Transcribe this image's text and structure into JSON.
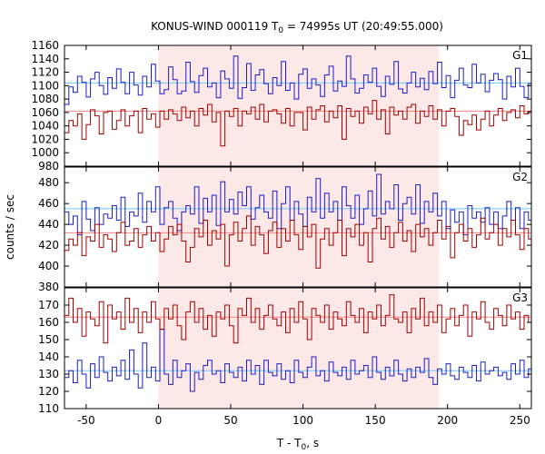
{
  "chart_data": {
    "type": "line",
    "title_main": "KONUS-WIND 000119 T",
    "title_sub": "0",
    "title_rest": " = 74995s UT (20:49:55.000)",
    "xlabel_main": "T - T",
    "xlabel_sub": "0",
    "xlabel_rest": ", s",
    "ylabel": "counts / sec",
    "xlim": [
      -65,
      258
    ],
    "xticks": [
      -50,
      0,
      50,
      100,
      150,
      200,
      250
    ],
    "highlight_interval": [
      0,
      194
    ],
    "highlight_color": "#fde8e8",
    "bin_width": 3,
    "bin_start": -65,
    "colors": {
      "blue": "#1c1cc8",
      "red": "#a00000",
      "blue_bg": "#66ccff",
      "red_bg": "#ff8080"
    },
    "panels": [
      {
        "name": "G1",
        "ylim": [
          980,
          1160
        ],
        "yticks": [
          980,
          1000,
          1020,
          1040,
          1060,
          1080,
          1100,
          1120,
          1140,
          1160
        ],
        "background": {
          "blue": 1104,
          "red": 1062
        },
        "series": [
          {
            "name": "",
            "color": "blue",
            "values": [
              1072,
              1098,
              1090,
              1114,
              1105,
              1083,
              1110,
              1120,
              1100,
              1087,
              1112,
              1096,
              1125,
              1105,
              1088,
              1120,
              1101,
              1086,
              1114,
              1098,
              1132,
              1107,
              1088,
              1094,
              1128,
              1109,
              1088,
              1092,
              1135,
              1106,
              1090,
              1115,
              1126,
              1098,
              1104,
              1082,
              1122,
              1110,
              1096,
              1144,
              1081,
              1097,
              1133,
              1093,
              1116,
              1124,
              1103,
              1088,
              1112,
              1100,
              1136,
              1093,
              1104,
              1080,
              1117,
              1125,
              1096,
              1110,
              1101,
              1084,
              1116,
              1129,
              1092,
              1107,
              1099,
              1144,
              1110,
              1089,
              1096,
              1116,
              1105,
              1126,
              1099,
              1084,
              1114,
              1102,
              1136,
              1095,
              1089,
              1104,
              1120,
              1098,
              1111,
              1094,
              1121,
              1103,
              1135,
              1097,
              1115,
              1082,
              1108,
              1126,
              1101,
              1097,
              1132,
              1104,
              1117,
              1091,
              1108,
              1118,
              1109,
              1080,
              1114,
              1098,
              1126,
              1099,
              1082,
              1103,
              1110,
              1096
            ]
          },
          {
            "name": "",
            "color": "red",
            "values": [
              1030,
              1048,
              1040,
              1058,
              1020,
              1042,
              1064,
              1055,
              1028,
              1060,
              1062,
              1035,
              1048,
              1064,
              1040,
              1055,
              1062,
              1030,
              1066,
              1050,
              1058,
              1038,
              1062,
              1050,
              1064,
              1058,
              1048,
              1068,
              1052,
              1062,
              1040,
              1066,
              1056,
              1072,
              1046,
              1060,
              1010,
              1062,
              1054,
              1066,
              1040,
              1062,
              1058,
              1068,
              1050,
              1072,
              1046,
              1062,
              1064,
              1058,
              1044,
              1066,
              1040,
              1060,
              1060,
              1034,
              1068,
              1050,
              1064,
              1070,
              1046,
              1062,
              1052,
              1070,
              1020,
              1066,
              1054,
              1062,
              1044,
              1068,
              1058,
              1078,
              1050,
              1064,
              1028,
              1068,
              1056,
              1062,
              1050,
              1068,
              1072,
              1044,
              1062,
              1054,
              1070,
              1050,
              1064,
              1040,
              1062,
              1066,
              1054,
              1026,
              1048,
              1042,
              1056,
              1034,
              1050,
              1062,
              1040,
              1056,
              1066,
              1048,
              1060,
              1064,
              1052,
              1070,
              1058,
              1062,
              1048,
              1066
            ]
          }
        ]
      },
      {
        "name": "G2",
        "ylim": [
          380,
          495
        ],
        "yticks": [
          380,
          400,
          420,
          440,
          460,
          480
        ],
        "background": {
          "blue": 455,
          "red": 432
        },
        "series": [
          {
            "name": "",
            "color": "blue",
            "values": [
              452,
              440,
              448,
              430,
              462,
              445,
              434,
              456,
              440,
              450,
              446,
              458,
              444,
              466,
              438,
              452,
              448,
              470,
              442,
              462,
              452,
              476,
              440,
              456,
              462,
              446,
              434,
              452,
              458,
              450,
              476,
              441,
              465,
              452,
              468,
              439,
              481,
              452,
              464,
              450,
              471,
              458,
              476,
              445,
              456,
              468,
              452,
              446,
              472,
              436,
              460,
              476,
              444,
              462,
              450,
              438,
              466,
              452,
              484,
              446,
              470,
              452,
              462,
              444,
              476,
              458,
              446,
              468,
              440,
              455,
              472,
              448,
              488,
              450,
              462,
              455,
              478,
              444,
              460,
              466,
              450,
              478,
              441,
              462,
              452,
              470,
              448,
              462,
              436,
              454,
              442,
              452,
              430,
              458,
              446,
              452,
              442,
              456,
              440,
              452,
              436,
              448,
              462,
              444,
              456,
              436,
              452,
              444,
              450,
              440
            ]
          },
          {
            "name": "",
            "color": "red",
            "values": [
              415,
              426,
              420,
              432,
              410,
              428,
              424,
              440,
              418,
              430,
              426,
              414,
              432,
              442,
              420,
              424,
              436,
              418,
              430,
              438,
              424,
              432,
              414,
              426,
              438,
              430,
              440,
              424,
              404,
              418,
              436,
              428,
              444,
              420,
              434,
              426,
              440,
              400,
              430,
              442,
              424,
              436,
              448,
              420,
              438,
              430,
              412,
              434,
              442,
              418,
              436,
              424,
              444,
              430,
              416,
              438,
              428,
              440,
              398,
              426,
              436,
              420,
              432,
              444,
              410,
              436,
              428,
              440,
              420,
              432,
              404,
              436,
              446,
              426,
              438,
              418,
              432,
              442,
              424,
              434,
              414,
              440,
              428,
              436,
              420,
              432,
              444,
              426,
              438,
              408,
              432,
              440,
              424,
              436,
              418,
              430,
              446,
              426,
              432,
              440,
              420,
              436,
              428,
              444,
              430,
              416,
              436,
              426,
              432,
              422
            ]
          }
        ]
      },
      {
        "name": "G3",
        "ylim": [
          110,
          180
        ],
        "yticks": [
          110,
          120,
          130,
          140,
          150,
          160,
          170
        ],
        "background": {
          "blue": 132,
          "red": 163
        },
        "series": [
          {
            "name": "",
            "color": "blue",
            "values": [
              128,
              132,
              125,
              138,
              130,
              122,
              136,
              128,
              140,
              131,
              126,
              134,
              129,
              138,
              127,
              144,
              130,
              122,
              148,
              128,
              134,
              126,
              156,
              130,
              124,
              138,
              128,
              132,
              136,
              120,
              131,
              127,
              135,
              138,
              130,
              132,
              125,
              136,
              131,
              128,
              134,
              126,
              138,
              130,
              135,
              124,
              138,
              131,
              129,
              136,
              127,
              132,
              125,
              138,
              131,
              128,
              134,
              140,
              129,
              132,
              126,
              137,
              131,
              129,
              134,
              127,
              138,
              130,
              132,
              135,
              128,
              140,
              131,
              127,
              134,
              129,
              138,
              130,
              126,
              133,
              128,
              134,
              131,
              139,
              128,
              124,
              133,
              130,
              136,
              129,
              127,
              134,
              131,
              128,
              135,
              126,
              137,
              130,
              132,
              134,
              129,
              131,
              127,
              136,
              130,
              138,
              128,
              133,
              124,
              134
            ]
          },
          {
            "name": "",
            "color": "red",
            "values": [
              164,
              174,
              160,
              168,
              152,
              166,
              162,
              158,
              172,
              148,
              170,
              162,
              166,
              156,
              174,
              160,
              168,
              154,
              166,
              160,
              172,
              162,
              156,
              168,
              162,
              170,
              158,
              150,
              166,
              172,
              160,
              168,
              156,
              164,
              152,
              166,
              162,
              170,
              158,
              148,
              168,
              164,
              174,
              160,
              168,
              156,
              164,
              170,
              162,
              158,
              166,
              154,
              168,
              160,
              172,
              162,
              150,
              168,
              164,
              160,
              170,
              156,
              166,
              162,
              158,
              172,
              164,
              160,
              168,
              154,
              166,
              162,
              170,
              158,
              164,
              176,
              162,
              160,
              166,
              154,
              168,
              162,
              174,
              158,
              166,
              160,
              170,
              154,
              162,
              168,
              158,
              164,
              170,
              152,
              166,
              162,
              172,
              160,
              156,
              168,
              164,
              158,
              170,
              162,
              166,
              156,
              164,
              160,
              158,
              162
            ]
          }
        ]
      }
    ]
  }
}
